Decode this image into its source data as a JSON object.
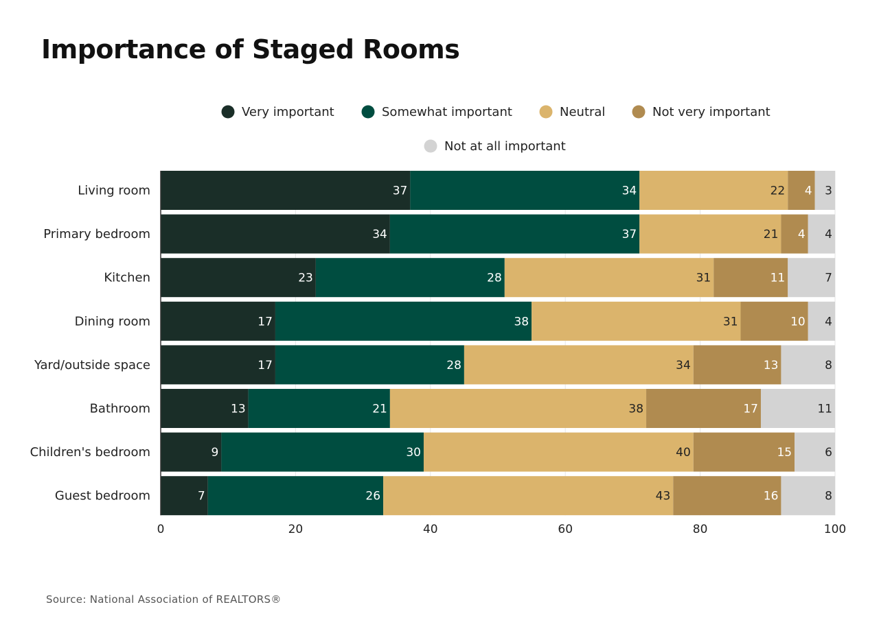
{
  "page": {
    "title": "Importance of Staged Rooms",
    "source": "Source: National Association of REALTORS®"
  },
  "colors": {
    "very_important": "#1a2e28",
    "somewhat_important": "#004d40",
    "neutral": "#dbb46c",
    "not_very_important": "#b08b50",
    "not_at_all_important": "#d3d3d3",
    "label_light": "#ffffff",
    "label_dark": "#222222"
  },
  "chart_data": {
    "type": "bar",
    "orientation": "horizontal",
    "stacked": true,
    "title": "Importance of Staged Rooms",
    "categories": [
      "Living room",
      "Primary bedroom",
      "Kitchen",
      "Dining room",
      "Yard/outside space",
      "Bathroom",
      "Children's bedroom",
      "Guest bedroom"
    ],
    "series": [
      {
        "name": "Very important",
        "color": "#1a2e28",
        "label_color": "#ffffff",
        "values": [
          37,
          34,
          23,
          17,
          17,
          13,
          9,
          7
        ]
      },
      {
        "name": "Somewhat important",
        "color": "#004d40",
        "label_color": "#ffffff",
        "values": [
          34,
          37,
          28,
          38,
          28,
          21,
          30,
          26
        ]
      },
      {
        "name": "Neutral",
        "color": "#dbb46c",
        "label_color": "#222222",
        "values": [
          22,
          21,
          31,
          31,
          34,
          38,
          40,
          43
        ]
      },
      {
        "name": "Not very important",
        "color": "#b08b50",
        "label_color": "#ffffff",
        "values": [
          4,
          4,
          11,
          10,
          13,
          17,
          15,
          16
        ]
      },
      {
        "name": "Not at all important",
        "color": "#d3d3d3",
        "label_color": "#222222",
        "values": [
          3,
          4,
          7,
          4,
          8,
          11,
          6,
          8
        ]
      }
    ],
    "xlim": [
      0,
      100
    ],
    "xticks": [
      0,
      20,
      40,
      60,
      80,
      100
    ],
    "grid": true,
    "legend_position": "top"
  }
}
